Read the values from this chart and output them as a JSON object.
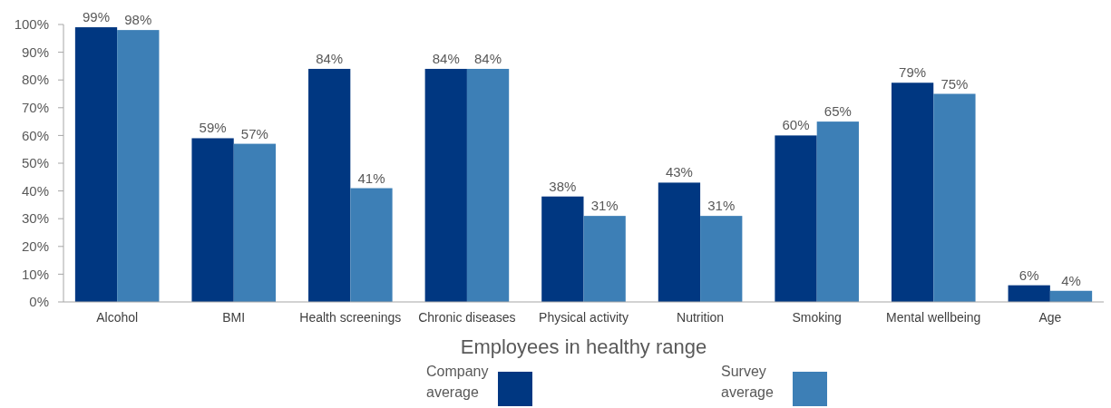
{
  "chart_data": {
    "type": "bar",
    "xlabel": "Employees in healthy range",
    "categories": [
      "Alcohol",
      "BMI",
      "Health screenings",
      "Chronic diseases",
      "Physical activity",
      "Nutrition",
      "Smoking",
      "Mental wellbeing",
      "Age"
    ],
    "series": [
      {
        "name": "Company average",
        "color": "#003781",
        "values": [
          99,
          59,
          84,
          84,
          38,
          43,
          60,
          79,
          6
        ],
        "value_labels": [
          "99%",
          "59%",
          "84%",
          "84%",
          "38%",
          "43%",
          "60%",
          "79%",
          "6%"
        ]
      },
      {
        "name": "Survey average",
        "color": "#3d7fb6",
        "values": [
          98,
          57,
          41,
          84,
          31,
          31,
          65,
          75,
          4
        ],
        "value_labels": [
          "98%",
          "57%",
          "41%",
          "84%",
          "31%",
          "31%",
          "65%",
          "75%",
          "4%"
        ]
      }
    ],
    "ylim": [
      0,
      100
    ],
    "yticks": [
      {
        "value": 0,
        "label": "0%"
      },
      {
        "value": 10,
        "label": "10%"
      },
      {
        "value": 20,
        "label": "20%"
      },
      {
        "value": 30,
        "label": "30%"
      },
      {
        "value": 40,
        "label": "40%"
      },
      {
        "value": 50,
        "label": "50%"
      },
      {
        "value": 60,
        "label": "60%"
      },
      {
        "value": 70,
        "label": "70%"
      },
      {
        "value": 80,
        "label": "80%"
      },
      {
        "value": 90,
        "label": "90%"
      },
      {
        "value": 100,
        "label": "100%"
      }
    ],
    "grid": false,
    "legend": "bottom"
  }
}
